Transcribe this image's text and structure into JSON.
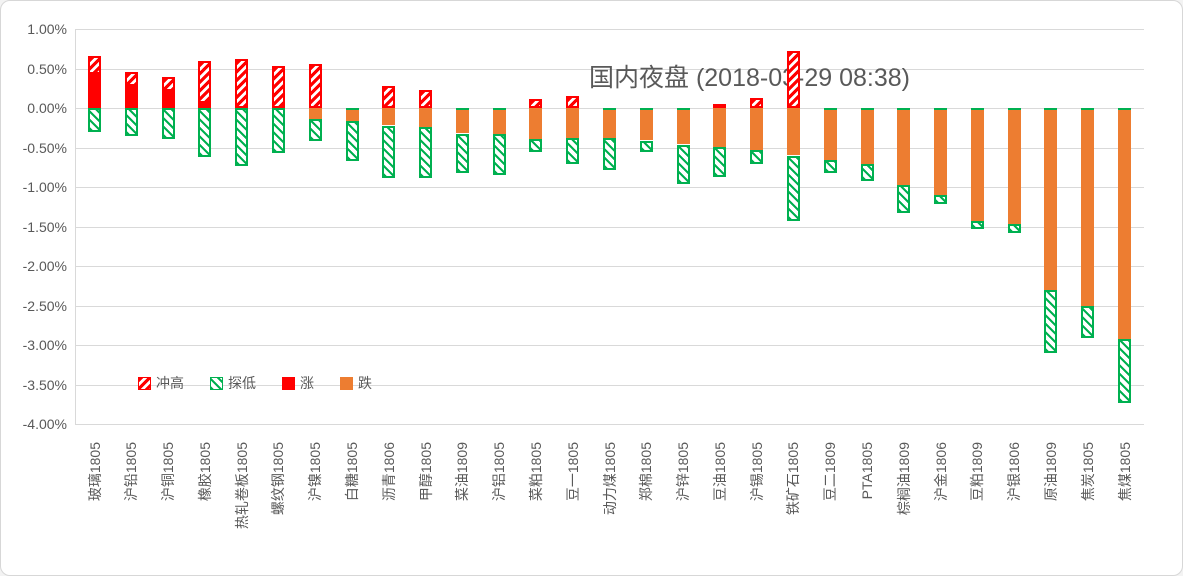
{
  "title": "国内夜盘 (2018-03-29 08:38)",
  "legend": {
    "items": [
      {
        "label": "冲高",
        "swatch": "red-hatch"
      },
      {
        "label": "探低",
        "swatch": "green-hatch"
      },
      {
        "label": "涨",
        "swatch": "red-solid"
      },
      {
        "label": "跌",
        "swatch": "orange-solid"
      }
    ]
  },
  "colors": {
    "up": "#FF0000",
    "down": "#ED7D31",
    "low": "#00B050",
    "grid": "#D9D9D9",
    "text": "#595959"
  },
  "y_axis": {
    "ticks": [
      "1.00%",
      "0.50%",
      "0.00%",
      "-0.50%",
      "-1.00%",
      "-1.50%",
      "-2.00%",
      "-2.50%",
      "-3.00%",
      "-3.50%",
      "-4.00%"
    ],
    "max": 1.0,
    "min": -4.0,
    "step": 0.5
  },
  "chart_data": {
    "type": "bar",
    "subtype": "stacked-high-low-close",
    "title": "国内夜盘 (2018-03-29 08:38)",
    "xlabel": "",
    "ylabel": "",
    "ylim": [
      -4.0,
      1.0
    ],
    "grid": true,
    "legend_position": "bottom-left",
    "units": "percent",
    "categories": [
      "玻璃1805",
      "沪铅1805",
      "沪铜1805",
      "橡胶1805",
      "热轧卷板1805",
      "螺纹钢1805",
      "沪镍1805",
      "白糖1805",
      "沥青1806",
      "甲醇1805",
      "菜油1809",
      "沪铝1805",
      "菜粕1805",
      "豆一1805",
      "动力煤1805",
      "郑棉1805",
      "沪锌1805",
      "豆油1805",
      "沪锡1805",
      "铁矿石1805",
      "豆二1809",
      "PTA1805",
      "棕榈油1809",
      "沪金1806",
      "豆粕1809",
      "沪银1806",
      "原油1809",
      "焦炭1805",
      "焦煤1805"
    ],
    "series": [
      {
        "name": "冲高",
        "role": "intraday_high_pct",
        "values": [
          0.66,
          0.46,
          0.39,
          0.6,
          0.62,
          0.53,
          0.56,
          0,
          0.28,
          0.23,
          0,
          0,
          0.12,
          0.15,
          0,
          0,
          0,
          0.05,
          0.13,
          0.72,
          0,
          0,
          0,
          0,
          0,
          0,
          0,
          0,
          0
        ]
      },
      {
        "name": "探低",
        "role": "intraday_low_pct",
        "values": [
          -0.31,
          -0.35,
          -0.39,
          -0.62,
          -0.73,
          -0.57,
          -0.42,
          -0.67,
          -0.88,
          -0.89,
          -0.81,
          -0.85,
          -0.55,
          -0.71,
          -0.78,
          -0.55,
          -0.96,
          -0.87,
          -0.71,
          -1.42,
          -0.82,
          -0.92,
          -1.33,
          -1.22,
          -1.53,
          -1.59,
          -3.1,
          -2.91,
          -3.73
        ]
      },
      {
        "name": "涨",
        "role": "close_gain_pct",
        "values": [
          0.45,
          0.3,
          0.24,
          0.09,
          0.02,
          0,
          0,
          0,
          0,
          0,
          0,
          0,
          0,
          0,
          0,
          0,
          0,
          0,
          0,
          0,
          0,
          0,
          0,
          0,
          0,
          0,
          0,
          0,
          0
        ]
      },
      {
        "name": "跌",
        "role": "close_loss_pct",
        "values": [
          0,
          0,
          0,
          0,
          0,
          0,
          -0.14,
          -0.16,
          -0.22,
          -0.24,
          -0.32,
          -0.33,
          -0.39,
          -0.38,
          -0.38,
          -0.41,
          -0.46,
          -0.49,
          -0.53,
          -0.6,
          -0.66,
          -0.71,
          -0.97,
          -1.1,
          -1.43,
          -1.47,
          -2.3,
          -2.5,
          -2.92
        ]
      }
    ]
  }
}
